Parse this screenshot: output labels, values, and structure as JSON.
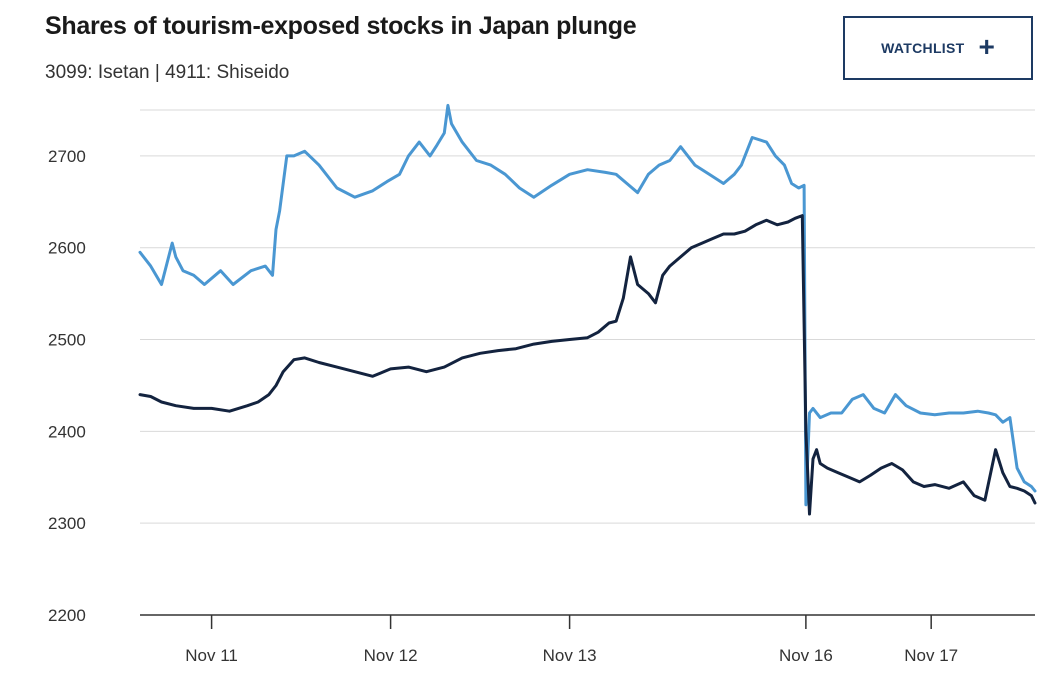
{
  "header": {
    "title": "Shares of tourism-exposed stocks in Japan plunge",
    "subtitle": "3099: Isetan | 4911: Shiseido",
    "watchlist_label": "WATCHLIST",
    "watchlist_icon": "plus-icon"
  },
  "colors": {
    "isetan": "#4a97d2",
    "shiseido": "#13233f",
    "grid": "#d9d9d9",
    "axis": "#333333",
    "accent": "#1d3a63"
  },
  "chart_data": {
    "type": "line",
    "title": "Shares of tourism-exposed stocks in Japan plunge",
    "subtitle": "3099: Isetan | 4911: Shiseido",
    "xlabel": "",
    "ylabel": "",
    "ylim": [
      2200,
      2750
    ],
    "yticks": [
      2200,
      2300,
      2400,
      2500,
      2600,
      2700
    ],
    "xlim": [
      0,
      5
    ],
    "xticks": [
      {
        "label": "Nov 11",
        "x": 0.4
      },
      {
        "label": "Nov 12",
        "x": 1.4
      },
      {
        "label": "Nov 13",
        "x": 2.4
      },
      {
        "label": "Nov 16",
        "x": 3.72
      },
      {
        "label": "Nov 17",
        "x": 4.42
      }
    ],
    "grid": true,
    "legend": "none",
    "series": [
      {
        "name": "3099: Isetan",
        "color": "#4a97d2",
        "x": [
          0,
          0.06,
          0.12,
          0.18,
          0.2,
          0.24,
          0.3,
          0.36,
          0.45,
          0.52,
          0.62,
          0.7,
          0.74,
          0.76,
          0.78,
          0.82,
          0.86,
          0.92,
          1.0,
          1.1,
          1.2,
          1.3,
          1.38,
          1.45,
          1.5,
          1.56,
          1.62,
          1.66,
          1.7,
          1.72,
          1.74,
          1.8,
          1.88,
          1.96,
          2.04,
          2.12,
          2.2,
          2.3,
          2.4,
          2.5,
          2.6,
          2.66,
          2.72,
          2.78,
          2.84,
          2.9,
          2.96,
          3.02,
          3.1,
          3.18,
          3.26,
          3.32,
          3.36,
          3.42,
          3.5,
          3.55,
          3.6,
          3.64,
          3.68,
          3.71,
          3.72,
          3.74,
          3.76,
          3.8,
          3.86,
          3.92,
          3.98,
          4.04,
          4.1,
          4.16,
          4.22,
          4.28,
          4.36,
          4.44,
          4.52,
          4.6,
          4.68,
          4.74,
          4.78,
          4.82,
          4.86,
          4.9,
          4.94,
          4.98,
          5.0
        ],
        "y": [
          2595,
          2580,
          2560,
          2605,
          2590,
          2575,
          2570,
          2560,
          2575,
          2560,
          2575,
          2580,
          2570,
          2620,
          2640,
          2700,
          2700,
          2705,
          2690,
          2665,
          2655,
          2662,
          2672,
          2680,
          2700,
          2715,
          2700,
          2712,
          2725,
          2755,
          2735,
          2715,
          2695,
          2690,
          2680,
          2665,
          2655,
          2668,
          2680,
          2685,
          2682,
          2680,
          2670,
          2660,
          2680,
          2690,
          2695,
          2710,
          2690,
          2680,
          2670,
          2680,
          2690,
          2720,
          2715,
          2700,
          2690,
          2670,
          2665,
          2668,
          2320,
          2420,
          2425,
          2415,
          2420,
          2420,
          2435,
          2440,
          2425,
          2420,
          2440,
          2428,
          2420,
          2418,
          2420,
          2420,
          2422,
          2420,
          2418,
          2410,
          2415,
          2360,
          2345,
          2340,
          2335
        ]
      },
      {
        "name": "4911: Shiseido",
        "color": "#13233f",
        "x": [
          0,
          0.06,
          0.12,
          0.2,
          0.3,
          0.4,
          0.5,
          0.6,
          0.66,
          0.72,
          0.76,
          0.8,
          0.86,
          0.92,
          1.0,
          1.1,
          1.2,
          1.3,
          1.4,
          1.5,
          1.6,
          1.7,
          1.8,
          1.9,
          2.0,
          2.1,
          2.2,
          2.3,
          2.4,
          2.5,
          2.56,
          2.62,
          2.66,
          2.7,
          2.74,
          2.78,
          2.84,
          2.88,
          2.92,
          2.96,
          3.02,
          3.08,
          3.14,
          3.2,
          3.26,
          3.32,
          3.38,
          3.44,
          3.5,
          3.56,
          3.62,
          3.66,
          3.7,
          3.72,
          3.74,
          3.76,
          3.78,
          3.8,
          3.84,
          3.9,
          3.96,
          4.02,
          4.08,
          4.14,
          4.2,
          4.26,
          4.32,
          4.38,
          4.44,
          4.52,
          4.6,
          4.66,
          4.72,
          4.78,
          4.82,
          4.86,
          4.9,
          4.94,
          4.98,
          5.0
        ],
        "y": [
          2440,
          2438,
          2432,
          2428,
          2425,
          2425,
          2422,
          2428,
          2432,
          2440,
          2450,
          2465,
          2478,
          2480,
          2475,
          2470,
          2465,
          2460,
          2468,
          2470,
          2465,
          2470,
          2480,
          2485,
          2488,
          2490,
          2495,
          2498,
          2500,
          2502,
          2508,
          2518,
          2520,
          2545,
          2590,
          2560,
          2550,
          2540,
          2570,
          2580,
          2590,
          2600,
          2605,
          2610,
          2615,
          2615,
          2618,
          2625,
          2630,
          2625,
          2628,
          2632,
          2635,
          2400,
          2310,
          2370,
          2380,
          2365,
          2360,
          2355,
          2350,
          2345,
          2352,
          2360,
          2365,
          2358,
          2345,
          2340,
          2342,
          2338,
          2345,
          2330,
          2325,
          2380,
          2355,
          2340,
          2338,
          2335,
          2330,
          2322
        ]
      }
    ]
  }
}
